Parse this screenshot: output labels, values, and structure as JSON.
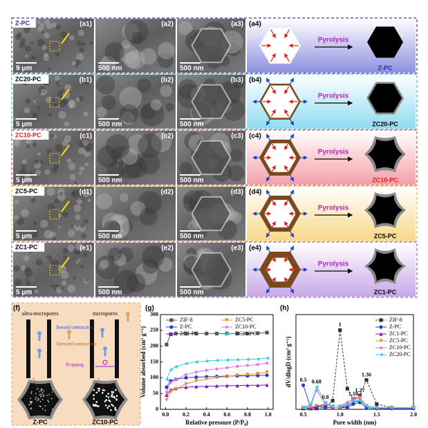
{
  "panels": [
    {
      "label": "Z-PC",
      "label_color": "#2233aa",
      "border_color": "#3a3aa8",
      "tint": "#8f8fe0",
      "images": [
        {
          "tag": "(a1)",
          "scale": "5 μm"
        },
        {
          "tag": "(a2)",
          "scale": "500 nm"
        },
        {
          "tag": "(a3)",
          "scale": "500 nm"
        }
      ],
      "schematic_tag": "(a4)",
      "arrow_text": "Pyrolysis",
      "product": "Z-PC",
      "product_color": "#2233aa"
    },
    {
      "label": "ZC20-PC",
      "label_color": "#000000",
      "border_color": "#39b4e4",
      "tint": "#8fdcf2",
      "images": [
        {
          "tag": "(b1)",
          "scale": "5 μm"
        },
        {
          "tag": "(b2)",
          "scale": "500 nm"
        },
        {
          "tag": "(b3)",
          "scale": "500 nm"
        }
      ],
      "schematic_tag": "(b4)",
      "arrow_text": "Pyrolysis",
      "product": "ZC20-PC",
      "product_color": "#000000"
    },
    {
      "label": "ZC10-PC",
      "label_color": "#e02020",
      "border_color": "#e04848",
      "tint": "#f4a0a8",
      "images": [
        {
          "tag": "(c1)",
          "scale": "5 μm"
        },
        {
          "tag": "(c2)",
          "scale": "500 nm"
        },
        {
          "tag": "(c3)",
          "scale": "500 nm"
        }
      ],
      "schematic_tag": "(c4)",
      "arrow_text": "Pyrolysis",
      "product": "ZC10-PC",
      "product_color": "#e02020"
    },
    {
      "label": "ZC5-PC",
      "label_color": "#000000",
      "border_color": "#f0b428",
      "tint": "#f8d888",
      "images": [
        {
          "tag": "(d1)",
          "scale": "5 μm"
        },
        {
          "tag": "(d2)",
          "scale": "500 nm"
        },
        {
          "tag": "(d3)",
          "scale": "500 nm"
        }
      ],
      "schematic_tag": "(d4)",
      "arrow_text": "Pyrolysis",
      "product": "ZC5-PC",
      "product_color": "#000000"
    },
    {
      "label": "ZC1-PC",
      "label_color": "#000000",
      "border_color": "#9a5ac8",
      "tint": "#c8a8e8",
      "images": [
        {
          "tag": "(e1)",
          "scale": "5 μm"
        },
        {
          "tag": "(e2)",
          "scale": "500 nm"
        },
        {
          "tag": "(e3)",
          "scale": "500 nm"
        }
      ],
      "schematic_tag": "(e4)",
      "arrow_text": "Pyrolysis",
      "product": "ZC1-PC",
      "product_color": "#000000"
    }
  ],
  "scheme": {
    "tag": "(f)",
    "left_title": "ultra-micropores",
    "right_title": "micropores",
    "inward": "Inward contraction",
    "outward": "Outward contraction",
    "propping": "Propping",
    "left_label": "Z-PC",
    "right_label": "ZC10-PC"
  },
  "chart_data": [
    {
      "type": "line",
      "tag": "(g)",
      "xlabel": "Relative pressure (P/P₀)",
      "ylabel": "Volume absorbed (cm³ g⁻¹)",
      "x": [
        0.01,
        0.05,
        0.1,
        0.2,
        0.3,
        0.4,
        0.5,
        0.6,
        0.7,
        0.8,
        0.9,
        0.99
      ],
      "xlim": [
        -0.05,
        1.05
      ],
      "xticks": [
        {
          "value": 0,
          "label": "0.0"
        },
        0.2,
        0.4,
        0.6,
        0.8,
        {
          "value": 1,
          "label": "1.0"
        }
      ],
      "ylim": [
        0,
        300
      ],
      "yticks": [
        0,
        50,
        100,
        150,
        200,
        250,
        300
      ],
      "legend": "top",
      "dashed": false,
      "series": [
        {
          "name": "ZIF-8",
          "color": "#555555",
          "marker": "square",
          "values": [
            205,
            238,
            240,
            240,
            240,
            240,
            240,
            240,
            240,
            240,
            241,
            243
          ]
        },
        {
          "name": "Z-PC",
          "color": "#1f3fd0",
          "marker": "circle",
          "values": [
            70,
            90,
            95,
            100,
            102,
            103,
            104,
            105,
            106,
            106,
            107,
            108
          ]
        },
        {
          "name": "ZC1-PC",
          "color": "#6a18c8",
          "marker": "triangle",
          "values": [
            45,
            62,
            66,
            70,
            72,
            73,
            74,
            75,
            75,
            76,
            76,
            77
          ]
        },
        {
          "name": "ZC5-PC",
          "color": "#f08a20",
          "marker": "triangle-down",
          "values": [
            30,
            55,
            65,
            80,
            90,
            96,
            100,
            104,
            108,
            110,
            113,
            118
          ]
        },
        {
          "name": "ZC10-PC",
          "color": "#e070e0",
          "marker": "diamond",
          "values": [
            55,
            85,
            95,
            110,
            118,
            124,
            128,
            132,
            136,
            139,
            142,
            146
          ]
        },
        {
          "name": "ZC20-PC",
          "color": "#30d0e0",
          "marker": "triangle-left",
          "values": [
            95,
            125,
            135,
            145,
            150,
            153,
            155,
            156,
            157,
            158,
            159,
            162
          ]
        }
      ]
    },
    {
      "type": "line",
      "tag": "(h)",
      "xlabel": "Pore width (nm)",
      "ylabel": "dV/dlogD (cm³ g⁻¹)",
      "x": [
        0.5,
        0.6,
        0.68,
        0.8,
        0.9,
        1.0,
        1.1,
        1.18,
        1.27,
        1.36,
        1.5,
        1.7,
        2.0
      ],
      "xlim": [
        0.4,
        2.0
      ],
      "xticks": [
        0.5,
        {
          "value": 1,
          "label": "1.0"
        },
        1.5,
        {
          "value": 2,
          "label": "2.0"
        }
      ],
      "ylim": [
        0,
        5.5
      ],
      "legend": "right",
      "dashed": true,
      "peak_labels": [
        1,
        0.5,
        0.68,
        0.8,
        1.18,
        1.27,
        1.36
      ],
      "series": [
        {
          "name": "ZIF-8",
          "color": "#333333",
          "marker": "square",
          "values": [
            0.05,
            0.05,
            0.05,
            0.1,
            0.5,
            4.6,
            1.2,
            0.6,
            0.8,
            1.7,
            0.3,
            0.1,
            0.1
          ]
        },
        {
          "name": "Z-PC",
          "color": "#1f3fd0",
          "marker": "circle",
          "values": [
            1.4,
            0.1,
            0.2,
            0.1,
            0.1,
            0.1,
            0.1,
            0.3,
            0.4,
            0.1,
            0.05,
            0.05,
            0.05
          ]
        },
        {
          "name": "ZC1-PC",
          "color": "#6a18c8",
          "marker": "triangle",
          "values": [
            0.1,
            0.1,
            0.1,
            0.3,
            0.1,
            0.1,
            0.2,
            0.4,
            0.5,
            0.2,
            0.1,
            0.1,
            0.1
          ]
        },
        {
          "name": "ZC5-PC",
          "color": "#f08a20",
          "marker": "triangle-down",
          "values": [
            0.1,
            0.1,
            0.2,
            0.3,
            0.1,
            0.1,
            0.3,
            0.5,
            0.7,
            0.2,
            0.1,
            0.1,
            0.1
          ]
        },
        {
          "name": "ZC10-PC",
          "color": "#e070e0",
          "marker": "diamond",
          "values": [
            0.1,
            0.2,
            1.1,
            0.3,
            0.2,
            0.2,
            0.4,
            0.6,
            0.6,
            0.2,
            0.1,
            0.1,
            0.1
          ]
        },
        {
          "name": "ZC20-PC",
          "color": "#30d0e0",
          "marker": "triangle-left",
          "values": [
            0.1,
            0.3,
            1.3,
            0.4,
            0.2,
            0.2,
            0.3,
            0.5,
            0.5,
            0.2,
            0.1,
            0.1,
            0.1
          ]
        }
      ]
    }
  ]
}
